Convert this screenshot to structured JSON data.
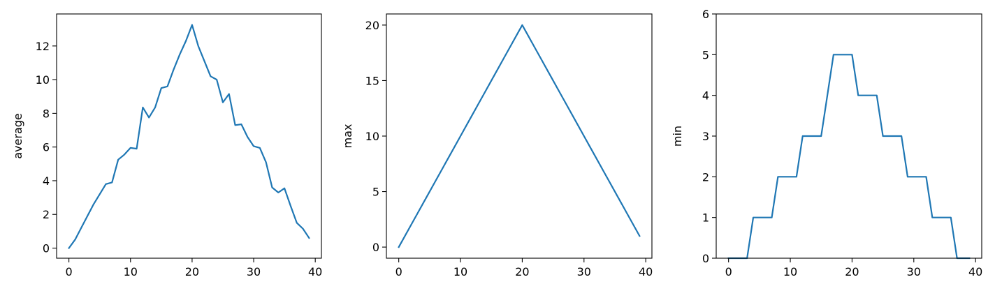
{
  "chart_data": [
    {
      "type": "line",
      "xlabel": "",
      "ylabel": "average",
      "xlim": [
        -2,
        41
      ],
      "ylim": [
        -0.6,
        13.9
      ],
      "xticks": [
        0,
        10,
        20,
        30,
        40
      ],
      "yticks": [
        0,
        2,
        4,
        6,
        8,
        10,
        12
      ],
      "grid": false,
      "color": "#1f77b4",
      "series": [
        {
          "x": [
            0,
            1,
            2,
            3,
            4,
            5,
            6,
            7,
            8,
            9,
            10,
            11,
            12,
            13,
            14,
            15,
            16,
            17,
            18,
            19,
            20,
            21,
            22,
            23,
            24,
            25,
            26,
            27,
            28,
            29,
            30,
            31,
            32,
            33,
            34,
            35,
            36,
            37,
            38,
            39
          ],
          "values": [
            0,
            0.5,
            1.2,
            1.9,
            2.6,
            3.2,
            3.8,
            3.9,
            5.25,
            5.55,
            5.95,
            5.9,
            8.35,
            7.75,
            8.35,
            9.5,
            9.6,
            10.6,
            11.5,
            12.3,
            13.25,
            12,
            11.1,
            10.2,
            10,
            8.65,
            9.15,
            7.3,
            7.35,
            6.6,
            6.05,
            5.95,
            5.1,
            3.6,
            3.3,
            3.55,
            2.5,
            1.5,
            1.15,
            0.6
          ]
        }
      ]
    },
    {
      "type": "line",
      "xlabel": "",
      "ylabel": "max",
      "xlim": [
        -2,
        41
      ],
      "ylim": [
        -1,
        21
      ],
      "xticks": [
        0,
        10,
        20,
        30,
        40
      ],
      "yticks": [
        0,
        5,
        10,
        15,
        20
      ],
      "grid": false,
      "color": "#1f77b4",
      "series": [
        {
          "x": [
            0,
            1,
            2,
            3,
            4,
            5,
            6,
            7,
            8,
            9,
            10,
            11,
            12,
            13,
            14,
            15,
            16,
            17,
            18,
            19,
            20,
            21,
            22,
            23,
            24,
            25,
            26,
            27,
            28,
            29,
            30,
            31,
            32,
            33,
            34,
            35,
            36,
            37,
            38,
            39
          ],
          "values": [
            0,
            1,
            2,
            3,
            4,
            5,
            6,
            7,
            8,
            9,
            10,
            11,
            12,
            13,
            14,
            15,
            16,
            17,
            18,
            19,
            20,
            19,
            18,
            17,
            16,
            15,
            14,
            13,
            12,
            11,
            10,
            9,
            8,
            7,
            6,
            5,
            4,
            3,
            2,
            1
          ]
        }
      ]
    },
    {
      "type": "line",
      "xlabel": "",
      "ylabel": "min",
      "xlim": [
        -2,
        41
      ],
      "ylim": [
        0,
        6
      ],
      "xticks": [
        0,
        10,
        20,
        30,
        40
      ],
      "yticks": [
        0,
        1,
        2,
        3,
        4,
        5,
        6
      ],
      "grid": false,
      "color": "#1f77b4",
      "series": [
        {
          "x": [
            0,
            1,
            2,
            3,
            4,
            5,
            6,
            7,
            8,
            9,
            10,
            11,
            12,
            13,
            14,
            15,
            16,
            17,
            18,
            19,
            20,
            21,
            22,
            23,
            24,
            25,
            26,
            27,
            28,
            29,
            30,
            31,
            32,
            33,
            34,
            35,
            36,
            37,
            38,
            39
          ],
          "values": [
            0,
            0,
            0,
            0,
            1,
            1,
            1,
            1,
            2,
            2,
            2,
            2,
            3,
            3,
            3,
            3,
            4,
            5,
            5,
            5,
            5,
            4,
            4,
            4,
            4,
            3,
            3,
            3,
            3,
            2,
            2,
            2,
            2,
            1,
            1,
            1,
            1,
            0,
            0,
            0
          ]
        }
      ]
    }
  ]
}
